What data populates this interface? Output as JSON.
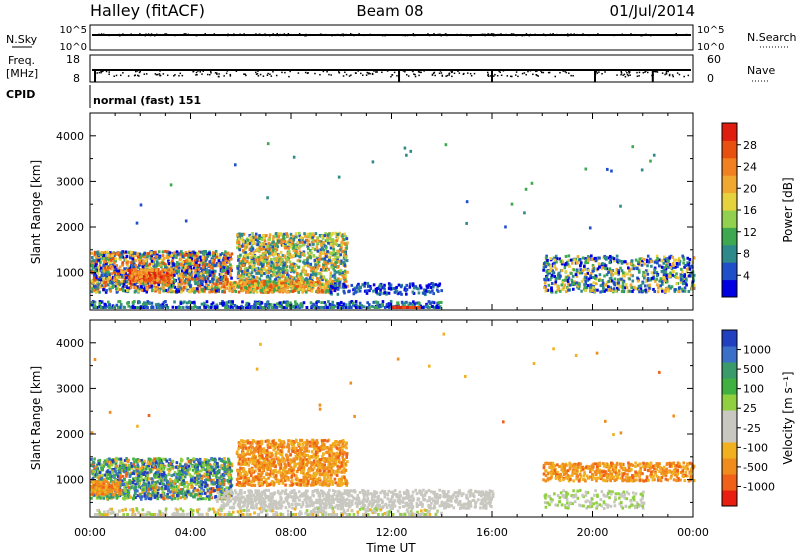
{
  "header": {
    "site": "Halley (fitACF)",
    "beam": "Beam 08",
    "date": "01/Jul/2014"
  },
  "noise_panel": {
    "left_label": "N.Sky",
    "right_label": "N.Search",
    "ticks_left": [
      "10^5",
      "10^0"
    ],
    "ticks_right": [
      "10^5",
      "10^0"
    ]
  },
  "freq_panel": {
    "left_label_line1": "Freq.",
    "left_label_line2": "[MHz]",
    "ticks_left": [
      "18",
      "8"
    ],
    "right_label": "Nave",
    "ticks_right": [
      "60",
      "0"
    ]
  },
  "cpid": {
    "label": "CPID",
    "program": "normal (fast) 151"
  },
  "x_axis": {
    "label": "Time UT",
    "ticks": [
      "00:00",
      "04:00",
      "08:00",
      "12:00",
      "16:00",
      "20:00",
      "00:00"
    ]
  },
  "chart_data": [
    {
      "type": "heatmap",
      "name": "power",
      "ylabel": "Slant Range [km]",
      "ylim": [
        180,
        4500
      ],
      "yticks": [
        "1000",
        "2000",
        "3000",
        "4000"
      ],
      "xlim_hours": [
        0,
        24
      ],
      "colorbar": {
        "label": "Power [dB]",
        "range": [
          0,
          30
        ],
        "ticks": [
          "4",
          "8",
          "12",
          "16",
          "20",
          "24",
          "28"
        ],
        "colors": [
          "#0000e0",
          "#1e4ec8",
          "#2e8a8a",
          "#3ea850",
          "#92d050",
          "#e6d23c",
          "#f0a830",
          "#f08020",
          "#e85010",
          "#e01e10"
        ]
      },
      "scatter_regions": [
        {
          "t": [
            0.0,
            5.6
          ],
          "r": [
            600,
            1500
          ],
          "level": "mid-high"
        },
        {
          "t": [
            5.8,
            10.2
          ],
          "r": [
            700,
            1900
          ],
          "level": "mid"
        },
        {
          "t": [
            0.0,
            14.0
          ],
          "r": [
            180,
            400
          ],
          "level": "low"
        },
        {
          "t": [
            18.0,
            24.0
          ],
          "r": [
            600,
            1400
          ],
          "level": "low-mid"
        }
      ]
    },
    {
      "type": "heatmap",
      "name": "velocity",
      "ylabel": "Slant Range [km]",
      "ylim": [
        180,
        4500
      ],
      "yticks": [
        "1000",
        "2000",
        "3000",
        "4000"
      ],
      "xlim_hours": [
        0,
        24
      ],
      "colorbar": {
        "label": "Velocity [m s⁻¹]",
        "ticks": [
          "1000",
          "500",
          "100",
          "25",
          "-25",
          "-100",
          "-500",
          "-1000"
        ],
        "colors": [
          "#2040c0",
          "#3a70c8",
          "#3a9a6a",
          "#40b040",
          "#90d040",
          "#c8c8c0",
          "#c8c8c0",
          "#f0b020",
          "#f08c1e",
          "#f06018",
          "#e81e10"
        ]
      },
      "scatter_regions": [
        {
          "t": [
            0.0,
            5.6
          ],
          "r": [
            600,
            1500
          ],
          "level": "positive"
        },
        {
          "t": [
            5.8,
            10.2
          ],
          "r": [
            900,
            1900
          ],
          "level": "negative"
        },
        {
          "t": [
            5.0,
            16.0
          ],
          "r": [
            400,
            800
          ],
          "level": "near-zero"
        },
        {
          "t": [
            18.0,
            24.0
          ],
          "r": [
            1000,
            1400
          ],
          "level": "negative"
        }
      ]
    }
  ]
}
